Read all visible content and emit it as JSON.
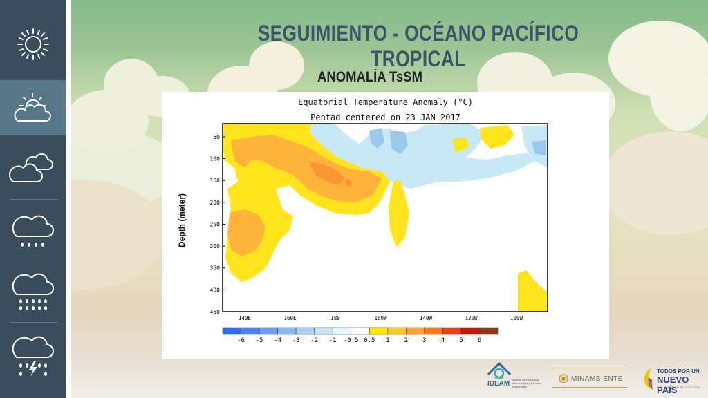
{
  "header": {
    "title": "SEGUIMIENTO - OCÉANO PACÍFICO TROPICAL",
    "subtitle": "ANOMALÍA TsSM"
  },
  "sidebar": {
    "items": [
      {
        "icon": "sun-icon"
      },
      {
        "icon": "sun-cloud-icon",
        "active": true
      },
      {
        "icon": "clouds-icon"
      },
      {
        "icon": "cloud-light-rain-icon"
      },
      {
        "icon": "cloud-heavy-rain-icon"
      },
      {
        "icon": "cloud-storm-icon"
      }
    ]
  },
  "figure": {
    "title_line1": "Equatorial Temperature Anomaly (°C)",
    "title_line2": "Pentad centered on 23 JAN 2017",
    "ylabel": "Depth (meter)"
  },
  "chart_data": {
    "type": "heatmap",
    "title": "Equatorial Temperature Anomaly (°C)",
    "subtitle": "Pentad centered on 23 JAN 2017",
    "ylabel": "Depth (meter)",
    "x_ticks": [
      "140E",
      "160E",
      "180",
      "160W",
      "140W",
      "120W",
      "100W"
    ],
    "y_ticks": [
      50,
      100,
      150,
      200,
      250,
      300,
      350,
      400,
      450
    ],
    "ylim": [
      450,
      20
    ],
    "colorbar_labels": [
      "-6",
      "-5",
      "-4",
      "-3",
      "-2",
      "-1",
      "-0.5",
      "0.5",
      "1",
      "2",
      "3",
      "4",
      "5",
      "6"
    ],
    "colorbar_colors": [
      "#2e6ee6",
      "#4a86ef",
      "#6aa0f3",
      "#8ab8f5",
      "#a9cdf5",
      "#c7e3f7",
      "#e6f6fb",
      "#ffffff",
      "#ffe600",
      "#ffc627",
      "#ffa234",
      "#ff7a1f",
      "#ef3e10",
      "#c01a08",
      "#8b3a1e"
    ],
    "regions": [
      {
        "anomaly": "1 to 2",
        "color": "#ffe21e",
        "approx_location": "140E-180, 30-390 m"
      },
      {
        "anomaly": "2 to 3",
        "color": "#ffc24a",
        "approx_location": "145E-170W, 40-300 m"
      },
      {
        "anomaly": "3 to 4",
        "color": "#f7962a",
        "approx_location": "175E-170W, 110-160 m"
      },
      {
        "anomaly": "-0.5 to -1",
        "color": "#bfe3f2",
        "approx_location": "170W-100W, 20-170 m"
      },
      {
        "anomaly": "-1 to -2",
        "color": "#8cc2ec",
        "approx_location": "165W-140W, 30-70 m"
      },
      {
        "anomaly": "1 to 2",
        "color": "#ffe21e",
        "approx_location": "100W-95W, 360-450 m"
      }
    ]
  },
  "logos": {
    "ideam": "IDEAM",
    "ideam_small": "Instituto de Hidrología, Meteorología y Estudios Ambientales",
    "minambiente": "MINAMBIENTE",
    "gov_line1": "TODOS POR UN",
    "gov_line2": "NUEVO PAÍS",
    "gov_line3": "PAZ  EQUIDAD  EDUCACIÓN"
  }
}
